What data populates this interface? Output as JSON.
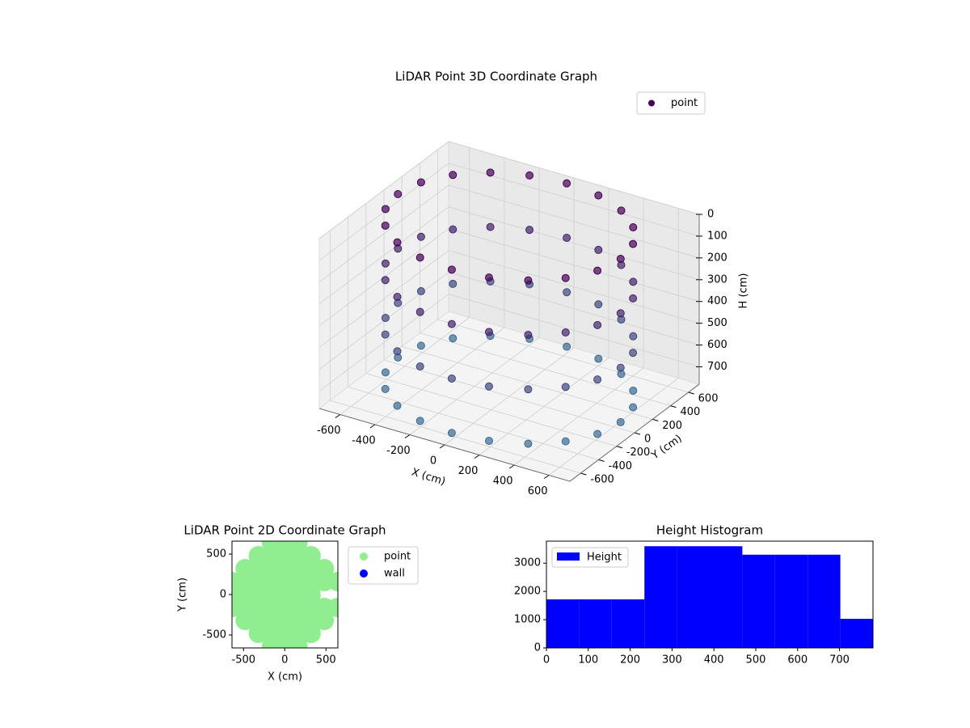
{
  "chart_data": [
    {
      "type": "scatter3d",
      "title": "LiDAR Point 3D Coordinate Graph",
      "xlabel": "X (cm)",
      "ylabel": "Y (cm)",
      "zlabel": "H (cm)",
      "xlim": [
        -720,
        720
      ],
      "ylim": [
        -720,
        720
      ],
      "zlim": [
        0,
        780
      ],
      "zinverted": true,
      "xticks": [
        -600,
        -400,
        -200,
        0,
        200,
        400,
        600
      ],
      "yticks": [
        -600,
        -400,
        -200,
        0,
        200,
        400,
        600
      ],
      "zticks": [
        0,
        100,
        200,
        300,
        400,
        500,
        600,
        700
      ],
      "legend": "upper right",
      "grid": true,
      "series": [
        {
          "name": "point",
          "colors": [
            "#440154",
            "#3b6e96"
          ],
          "x": [
            640,
            609,
            518,
            376,
            198,
            0,
            -198,
            -376,
            -518,
            -609,
            -640,
            -609,
            -518,
            -376,
            -198,
            0,
            198,
            376,
            518,
            609,
            640,
            609,
            518,
            376,
            198,
            0,
            -198,
            -376,
            -518,
            -609,
            -640,
            -609,
            -518,
            -376,
            -198,
            0,
            198,
            376,
            518,
            609,
            640,
            609,
            518,
            376,
            198,
            0,
            -198,
            -376,
            -518,
            -609,
            -640,
            -609,
            -518,
            -376,
            -198,
            0,
            198,
            376,
            518,
            609,
            640,
            609,
            518,
            376,
            198,
            0,
            -198,
            -376,
            -518,
            -609,
            -640,
            -609,
            -518,
            -376,
            -198,
            0,
            198,
            376,
            518,
            609
          ],
          "y": [
            0,
            198,
            376,
            518,
            609,
            640,
            609,
            518,
            376,
            198,
            0,
            -198,
            -376,
            -518,
            -609,
            -640,
            -609,
            -518,
            -376,
            -198,
            0,
            198,
            376,
            518,
            609,
            640,
            609,
            518,
            376,
            198,
            0,
            -198,
            -376,
            -518,
            -609,
            -640,
            -609,
            -518,
            -376,
            -198,
            0,
            198,
            376,
            518,
            609,
            640,
            609,
            518,
            376,
            198,
            0,
            -198,
            -376,
            -518,
            -609,
            -640,
            -609,
            -518,
            -376,
            -198,
            0,
            198,
            376,
            518,
            609,
            640,
            609,
            518,
            376,
            198,
            0,
            -198,
            -376,
            -518,
            -609,
            -640,
            -609,
            -518,
            -376,
            -198
          ],
          "z": [
            0,
            0,
            0,
            0,
            0,
            0,
            0,
            0,
            0,
            0,
            0,
            0,
            0,
            0,
            0,
            0,
            0,
            0,
            0,
            0,
            250,
            250,
            250,
            250,
            250,
            250,
            250,
            250,
            250,
            250,
            250,
            250,
            250,
            250,
            250,
            250,
            250,
            250,
            250,
            250,
            500,
            500,
            500,
            500,
            500,
            500,
            500,
            500,
            500,
            500,
            500,
            500,
            500,
            500,
            500,
            500,
            500,
            500,
            500,
            500,
            750,
            750,
            750,
            750,
            750,
            750,
            750,
            750,
            750,
            750,
            750,
            750,
            750,
            750,
            750,
            750,
            750,
            750,
            750,
            750
          ]
        }
      ]
    },
    {
      "type": "scatter",
      "title": "LiDAR Point 2D Coordinate Graph",
      "xlabel": "X (cm)",
      "ylabel": "Y (cm)",
      "xlim": [
        -640,
        645
      ],
      "ylim": [
        -660,
        660
      ],
      "xticks": [
        -500,
        0,
        500
      ],
      "yticks": [
        -500,
        0,
        500
      ],
      "legend": "outside right",
      "series": [
        {
          "name": "point",
          "color": "#90ee90",
          "x": [
            -640,
            -640,
            -640,
            -480,
            -480,
            -480,
            -480,
            -480,
            -320,
            -320,
            -320,
            -320,
            -320,
            -320,
            -320,
            -160,
            -160,
            -160,
            -160,
            -160,
            -160,
            -160,
            -160,
            -160,
            0,
            0,
            0,
            0,
            0,
            0,
            0,
            0,
            0,
            160,
            160,
            160,
            160,
            160,
            160,
            160,
            160,
            160,
            320,
            320,
            320,
            320,
            320,
            320,
            320,
            480,
            480,
            480,
            480,
            640,
            640
          ],
          "y": [
            -160,
            0,
            160,
            -320,
            -160,
            0,
            160,
            320,
            -480,
            -320,
            -160,
            0,
            160,
            320,
            480,
            -640,
            -480,
            -320,
            -160,
            0,
            160,
            320,
            480,
            640,
            -640,
            -480,
            -320,
            -160,
            0,
            160,
            320,
            480,
            640,
            -640,
            -480,
            -320,
            -160,
            0,
            160,
            320,
            480,
            640,
            -480,
            -320,
            -160,
            0,
            160,
            320,
            480,
            -320,
            -160,
            160,
            320,
            -160,
            160
          ]
        },
        {
          "name": "wall",
          "color": "#0000ff",
          "x": [],
          "y": []
        }
      ]
    },
    {
      "type": "histogram",
      "title": "Height Histogram",
      "name": "Height",
      "color": "#0000ff",
      "bins": [
        0,
        78,
        156,
        234,
        312,
        390,
        468,
        546,
        624,
        702,
        780
      ],
      "counts": [
        1720,
        1720,
        1720,
        3600,
        3600,
        3600,
        3300,
        3300,
        3300,
        1030
      ],
      "xlim": [
        0,
        780
      ],
      "ylim": [
        0,
        3780
      ],
      "xticks": [
        0,
        100,
        200,
        300,
        400,
        500,
        600,
        700
      ],
      "yticks": [
        0,
        1000,
        2000,
        3000
      ],
      "legend": "upper left"
    }
  ]
}
